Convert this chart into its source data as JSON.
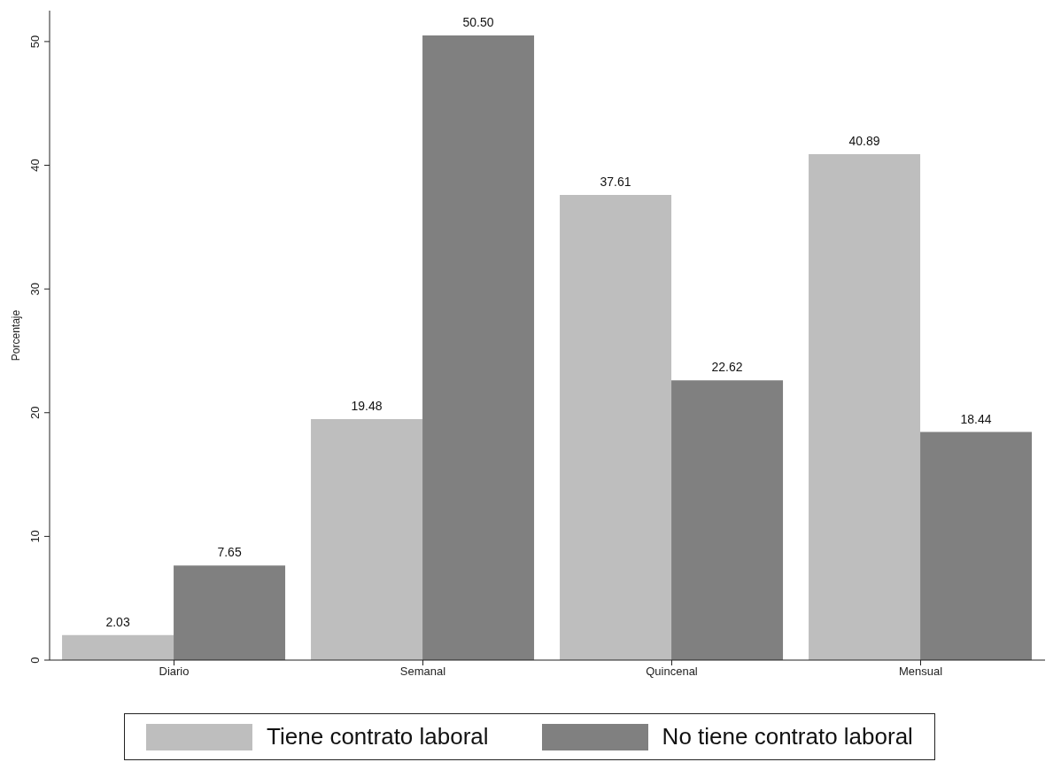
{
  "chart_data": {
    "type": "bar",
    "ylabel": "Porcentaje",
    "categories": [
      "Diario",
      "Semanal",
      "Quincenal",
      "Mensual"
    ],
    "series": [
      {
        "name": "Tiene contrato laboral",
        "color": "#bebebe",
        "values": [
          2.03,
          19.48,
          37.61,
          40.89
        ],
        "value_labels": [
          "2.03",
          "19.48",
          "37.61",
          "40.89"
        ]
      },
      {
        "name": "No tiene contrato laboral",
        "color": "#808080",
        "values": [
          7.65,
          50.5,
          22.62,
          18.44
        ],
        "value_labels": [
          "7.65",
          "50.50",
          "22.62",
          "18.44"
        ]
      }
    ],
    "ylim": [
      0,
      52.5
    ],
    "yticks": [
      0,
      10,
      20,
      30,
      40,
      50
    ],
    "grid": false,
    "legend": "bottom"
  }
}
